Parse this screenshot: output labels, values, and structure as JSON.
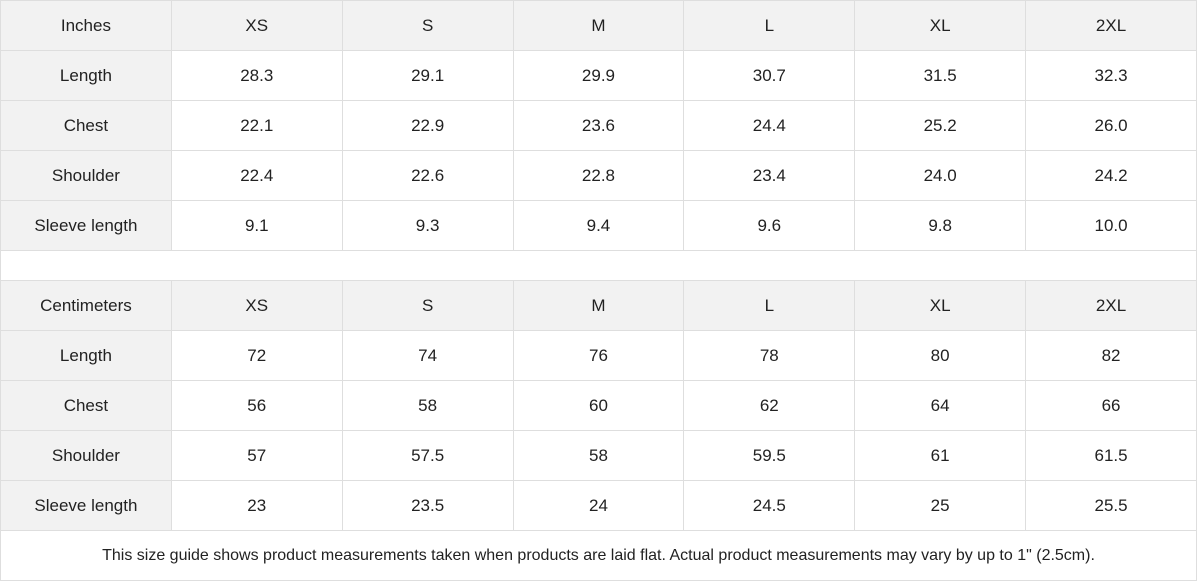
{
  "tables": [
    {
      "unit": "Inches",
      "sizes": [
        "XS",
        "S",
        "M",
        "L",
        "XL",
        "2XL"
      ],
      "rows": [
        {
          "label": "Length",
          "values": [
            "28.3",
            "29.1",
            "29.9",
            "30.7",
            "31.5",
            "32.3"
          ]
        },
        {
          "label": "Chest",
          "values": [
            "22.1",
            "22.9",
            "23.6",
            "24.4",
            "25.2",
            "26.0"
          ]
        },
        {
          "label": "Shoulder",
          "values": [
            "22.4",
            "22.6",
            "22.8",
            "23.4",
            "24.0",
            "24.2"
          ]
        },
        {
          "label": "Sleeve length",
          "values": [
            "9.1",
            "9.3",
            "9.4",
            "9.6",
            "9.8",
            "10.0"
          ]
        }
      ]
    },
    {
      "unit": "Centimeters",
      "sizes": [
        "XS",
        "S",
        "M",
        "L",
        "XL",
        "2XL"
      ],
      "rows": [
        {
          "label": "Length",
          "values": [
            "72",
            "74",
            "76",
            "78",
            "80",
            "82"
          ]
        },
        {
          "label": "Chest",
          "values": [
            "56",
            "58",
            "60",
            "62",
            "64",
            "66"
          ]
        },
        {
          "label": "Shoulder",
          "values": [
            "57",
            "57.5",
            "58",
            "59.5",
            "61",
            "61.5"
          ]
        },
        {
          "label": "Sleeve length",
          "values": [
            "23",
            "23.5",
            "24",
            "24.5",
            "25",
            "25.5"
          ]
        }
      ]
    }
  ],
  "footnote": "This size guide shows product measurements taken when products are laid flat.  Actual product measurements may vary by up to 1\" (2.5cm)."
}
